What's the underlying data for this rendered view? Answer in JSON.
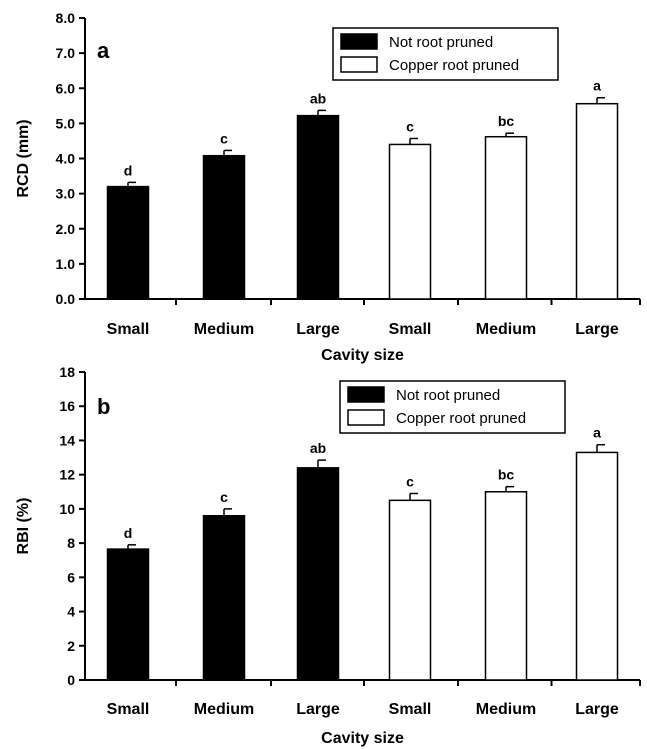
{
  "chart_data": [
    {
      "type": "bar",
      "panel_label": "a",
      "categories": [
        "Small",
        "Medium",
        "Large",
        "Small",
        "Medium",
        "Large"
      ],
      "series": [
        {
          "name": "Not root pruned",
          "color": "#000000",
          "indices": [
            0,
            1,
            2
          ]
        },
        {
          "name": "Copper root pruned",
          "color": "#ffffff",
          "indices": [
            3,
            4,
            5
          ]
        }
      ],
      "values": [
        3.2,
        4.08,
        5.22,
        4.4,
        4.62,
        5.56
      ],
      "errors": [
        0.12,
        0.15,
        0.15,
        0.17,
        0.1,
        0.17
      ],
      "significance": [
        "d",
        "c",
        "ab",
        "c",
        "bc",
        "a"
      ],
      "xlabel": "Cavity size",
      "ylabel": "RCD (mm)",
      "ylim": [
        0,
        8
      ],
      "yticks": [
        "0.0",
        "1.0",
        "2.0",
        "3.0",
        "4.0",
        "5.0",
        "6.0",
        "7.0",
        "8.0"
      ],
      "legend_position": "top-right",
      "grid": false
    },
    {
      "type": "bar",
      "panel_label": "b",
      "categories": [
        "Small",
        "Medium",
        "Large",
        "Small",
        "Medium",
        "Large"
      ],
      "series": [
        {
          "name": "Not root pruned",
          "color": "#000000",
          "indices": [
            0,
            1,
            2
          ]
        },
        {
          "name": "Copper root pruned",
          "color": "#ffffff",
          "indices": [
            3,
            4,
            5
          ]
        }
      ],
      "values": [
        7.65,
        9.6,
        12.4,
        10.5,
        11.0,
        13.3
      ],
      "errors": [
        0.25,
        0.4,
        0.45,
        0.4,
        0.3,
        0.45
      ],
      "significance": [
        "d",
        "c",
        "ab",
        "c",
        "bc",
        "a"
      ],
      "xlabel": "Cavity size",
      "ylabel": "RBI (%)",
      "ylim": [
        0,
        18
      ],
      "yticks": [
        "0",
        "2",
        "4",
        "6",
        "8",
        "10",
        "12",
        "14",
        "16",
        "18"
      ],
      "legend_position": "top-right",
      "grid": false
    }
  ]
}
